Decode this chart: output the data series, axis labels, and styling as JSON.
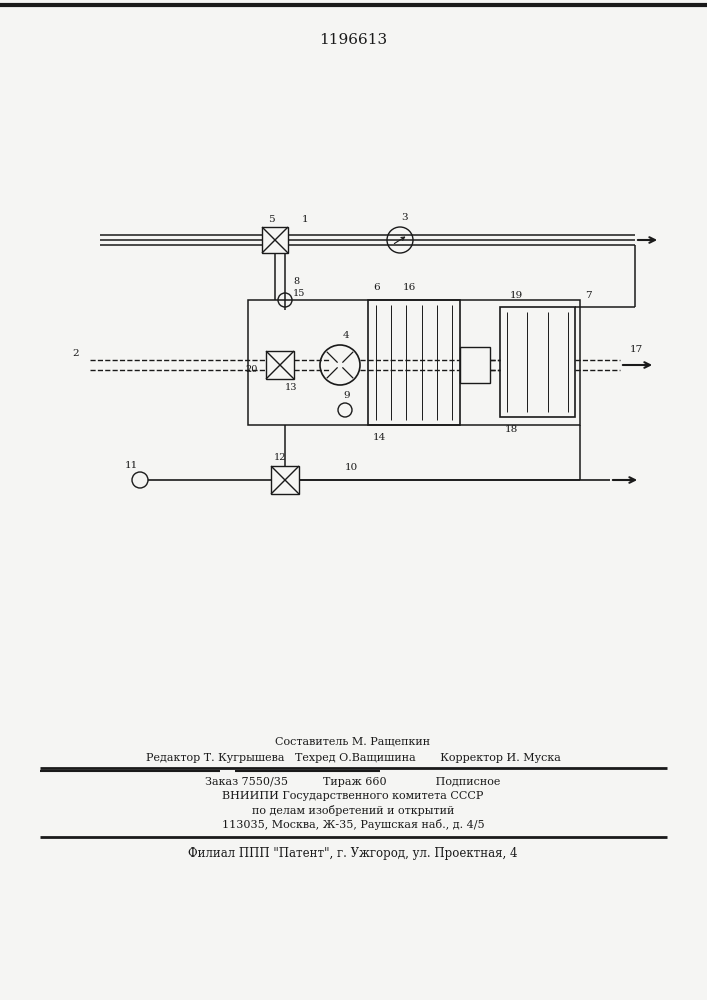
{
  "title": "1196613",
  "bg_color": "#f5f5f3",
  "line_color": "#1a1a1a",
  "footer": {
    "line1": "Составитель М. Ращепкин",
    "line2": "Редактор Т. Кугрышева   Техред О.Ващишина       Корректор И. Муска",
    "line3": "Заказ 7550/35          Тираж 660              Подписное",
    "line4": "ВНИИПИ Государственного комитета СССР",
    "line5": "по делам изобретений и открытий",
    "line6": "113035, Москва, Ж-35, Раушская наб., д. 4/5",
    "line7": "Филиал ППП \"Патент\", г. Ужгород, ул. Проектная, 4"
  }
}
